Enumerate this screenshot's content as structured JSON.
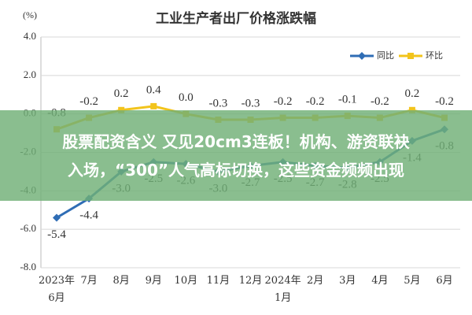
{
  "chart_data": {
    "type": "line",
    "title": "工业生产者出厂价格涨跌幅",
    "y_unit": "(%)",
    "categories": [
      "2023年\n6月",
      "7月",
      "8月",
      "9月",
      "10月",
      "11月",
      "12月",
      "2024年\n1月",
      "2月",
      "3月",
      "4月",
      "5月",
      "6月"
    ],
    "series": [
      {
        "name": "同比",
        "color": "#2f6db5",
        "marker": "diamond",
        "values": [
          -5.4,
          -4.4,
          -3.0,
          -2.5,
          -2.6,
          -3.0,
          -2.7,
          -2.5,
          -2.7,
          -2.8,
          -2.5,
          -1.4,
          -0.8
        ],
        "value_labels": [
          "-5.4",
          "-4.4",
          "-3.0",
          "-2.5",
          "-2.6",
          "-3.0",
          "-2.7",
          "-2.5",
          "-2.7",
          "-2.8",
          "-2.5",
          "-1.4",
          "-0.8"
        ]
      },
      {
        "name": "环比",
        "color": "#f2c41c",
        "marker": "square",
        "values": [
          -0.8,
          -0.2,
          0.2,
          0.4,
          0.0,
          -0.3,
          -0.3,
          -0.2,
          -0.2,
          -0.1,
          -0.2,
          0.2,
          -0.2
        ],
        "value_labels": [
          "-0.8",
          "-0.2",
          "0.2",
          "0.4",
          "0.0",
          "-0.3",
          "-0.3",
          "-0.2",
          "-0.2",
          "-0.1",
          "-0.2",
          "0.2",
          "-0.2"
        ]
      }
    ],
    "ylim": [
      -8,
      4
    ],
    "yticks": [
      {
        "value": -8,
        "label": "-8.0"
      },
      {
        "value": -6,
        "label": "-6.0"
      },
      {
        "value": -4,
        "label": "-4.0"
      },
      {
        "value": -2,
        "label": "-2.0"
      },
      {
        "value": 0,
        "label": "0.0"
      },
      {
        "value": 2,
        "label": "2.0"
      },
      {
        "value": 4,
        "label": "4.0"
      }
    ],
    "grid": true,
    "legend": "top-right"
  },
  "banner": {
    "lines": [
      "股票配资含义 又见20cm3连板！机构、游资联袂",
      "入场，“300”人气高标切换，这些资金频频出现"
    ]
  }
}
